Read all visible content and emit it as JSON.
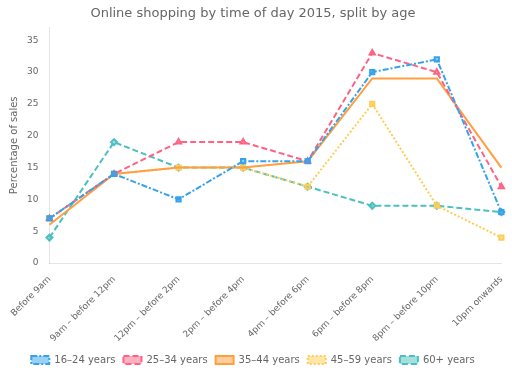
{
  "chart_data": {
    "type": "line",
    "title": "Online shopping by time of day 2015, split by age",
    "y_label": "Percentage of sales",
    "categories": [
      "Before 9am",
      "9am – before 12pm",
      "12pm – before 2pm",
      "2pm – before 4pm",
      "4pm – before 6pm",
      "6pm – before 8pm",
      "8pm – before 10pm",
      "10pm onwards"
    ],
    "series": [
      {
        "name": "16–24 years",
        "values": [
          7,
          14,
          10,
          16,
          16,
          30,
          32,
          8
        ],
        "marker": "square",
        "line_style": "dashdot"
      },
      {
        "name": "25–34 years",
        "values": [
          7,
          14,
          19,
          19,
          16,
          33,
          30,
          12
        ],
        "marker": "triangle",
        "line_style": "dashed"
      },
      {
        "name": "35–44 years",
        "values": [
          6,
          14,
          15,
          15,
          16,
          29,
          29,
          15
        ],
        "marker": "none",
        "line_style": "solid"
      },
      {
        "name": "45–59 years",
        "values": [
          7,
          14,
          15,
          15,
          12,
          25,
          9,
          4
        ],
        "marker": "square",
        "line_style": "dotted"
      },
      {
        "name": "60+ years",
        "values": [
          4,
          19,
          15,
          15,
          12,
          9,
          9,
          8
        ],
        "marker": "diamond",
        "line_style": "dashed"
      }
    ],
    "ylim": [
      0,
      37
    ],
    "yticks": [
      0,
      5,
      10,
      15,
      20,
      25,
      30,
      35
    ],
    "grid": false,
    "legend": "bottom"
  }
}
